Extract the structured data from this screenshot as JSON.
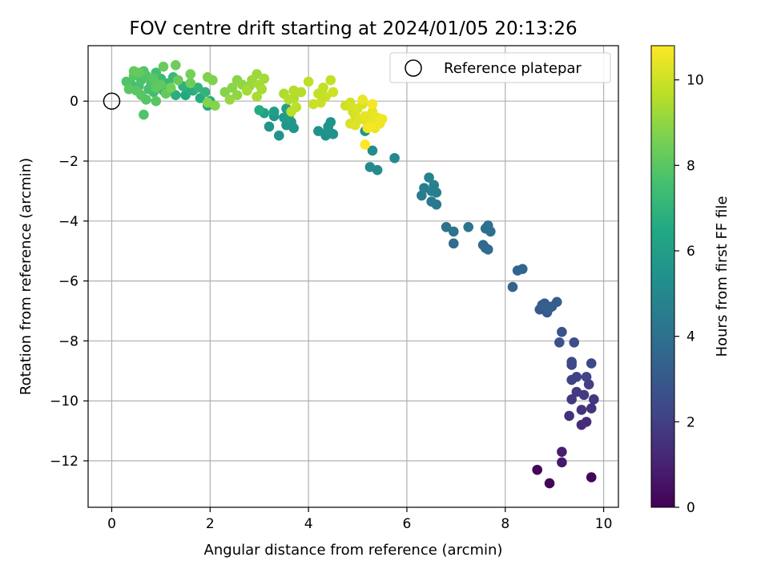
{
  "chart_data": {
    "type": "scatter",
    "title": "FOV centre drift starting at 2024/01/05 20:13:26",
    "xlabel": "Angular distance from reference (arcmin)",
    "ylabel": "Rotation from reference (arcmin)",
    "xlim": [
      -0.48,
      10.3
    ],
    "ylim": [
      -13.55,
      1.85
    ],
    "xticks": [
      0,
      2,
      4,
      6,
      8,
      10
    ],
    "yticks": [
      0,
      -2,
      -4,
      -6,
      -8,
      -10,
      -12
    ],
    "xtick_labels": [
      "0",
      "2",
      "4",
      "6",
      "8",
      "10"
    ],
    "ytick_labels": [
      "0",
      "−2",
      "−4",
      "−6",
      "−8",
      "−10",
      "−12"
    ],
    "grid": true,
    "colormap": "viridis",
    "colorbar": {
      "label": "Hours from first FF file",
      "range": [
        0,
        10.8
      ],
      "ticks": [
        0,
        2,
        4,
        6,
        8,
        10
      ],
      "tick_labels": [
        "0",
        "2",
        "4",
        "6",
        "8",
        "10"
      ]
    },
    "legend": {
      "position": "top-right",
      "entries": [
        {
          "label": "Reference platepar",
          "marker": "open-circle"
        }
      ]
    },
    "reference_point": {
      "x": 0,
      "y": 0
    },
    "points": [
      {
        "x": 8.65,
        "y": -12.3,
        "h": 0.1
      },
      {
        "x": 8.9,
        "y": -12.75,
        "h": 0.1
      },
      {
        "x": 9.75,
        "y": -12.55,
        "h": 0.15
      },
      {
        "x": 9.15,
        "y": -12.05,
        "h": 0.7
      },
      {
        "x": 9.15,
        "y": -11.7,
        "h": 0.9
      },
      {
        "x": 9.55,
        "y": -10.8,
        "h": 1.3
      },
      {
        "x": 9.65,
        "y": -10.7,
        "h": 1.4
      },
      {
        "x": 9.3,
        "y": -10.5,
        "h": 1.5
      },
      {
        "x": 9.75,
        "y": -10.25,
        "h": 1.6
      },
      {
        "x": 9.55,
        "y": -10.3,
        "h": 1.6
      },
      {
        "x": 9.8,
        "y": -9.95,
        "h": 1.7
      },
      {
        "x": 9.35,
        "y": -9.95,
        "h": 1.8
      },
      {
        "x": 9.45,
        "y": -9.7,
        "h": 1.8
      },
      {
        "x": 9.6,
        "y": -9.8,
        "h": 1.9
      },
      {
        "x": 9.7,
        "y": -9.45,
        "h": 2.0
      },
      {
        "x": 9.35,
        "y": -9.3,
        "h": 2.1
      },
      {
        "x": 9.45,
        "y": -9.2,
        "h": 2.1
      },
      {
        "x": 9.65,
        "y": -9.2,
        "h": 2.2
      },
      {
        "x": 9.35,
        "y": -8.8,
        "h": 2.3
      },
      {
        "x": 9.35,
        "y": -8.7,
        "h": 2.4
      },
      {
        "x": 9.75,
        "y": -8.75,
        "h": 2.4
      },
      {
        "x": 9.4,
        "y": -8.05,
        "h": 2.6
      },
      {
        "x": 9.1,
        "y": -8.05,
        "h": 2.7
      },
      {
        "x": 9.15,
        "y": -7.7,
        "h": 2.8
      },
      {
        "x": 8.7,
        "y": -6.95,
        "h": 3.0
      },
      {
        "x": 8.85,
        "y": -7.05,
        "h": 3.0
      },
      {
        "x": 8.8,
        "y": -6.75,
        "h": 3.1
      },
      {
        "x": 8.95,
        "y": -6.85,
        "h": 3.1
      },
      {
        "x": 9.05,
        "y": -6.7,
        "h": 3.2
      },
      {
        "x": 8.75,
        "y": -6.8,
        "h": 3.2
      },
      {
        "x": 8.9,
        "y": -6.9,
        "h": 3.3
      },
      {
        "x": 8.15,
        "y": -6.2,
        "h": 3.4
      },
      {
        "x": 8.25,
        "y": -5.65,
        "h": 3.5
      },
      {
        "x": 8.35,
        "y": -5.6,
        "h": 3.5
      },
      {
        "x": 7.55,
        "y": -4.8,
        "h": 3.7
      },
      {
        "x": 7.6,
        "y": -4.9,
        "h": 3.7
      },
      {
        "x": 7.65,
        "y": -4.95,
        "h": 3.8
      },
      {
        "x": 6.95,
        "y": -4.75,
        "h": 3.8
      },
      {
        "x": 7.6,
        "y": -4.25,
        "h": 3.9
      },
      {
        "x": 7.7,
        "y": -4.35,
        "h": 3.9
      },
      {
        "x": 7.65,
        "y": -4.15,
        "h": 4.0
      },
      {
        "x": 6.8,
        "y": -4.2,
        "h": 4.0
      },
      {
        "x": 6.95,
        "y": -4.35,
        "h": 4.1
      },
      {
        "x": 7.25,
        "y": -4.2,
        "h": 4.1
      },
      {
        "x": 6.6,
        "y": -3.45,
        "h": 4.3
      },
      {
        "x": 6.5,
        "y": -3.35,
        "h": 4.4
      },
      {
        "x": 6.3,
        "y": -3.15,
        "h": 4.5
      },
      {
        "x": 6.35,
        "y": -2.9,
        "h": 4.5
      },
      {
        "x": 6.5,
        "y": -3.0,
        "h": 4.6
      },
      {
        "x": 6.6,
        "y": -3.05,
        "h": 4.6
      },
      {
        "x": 6.55,
        "y": -2.8,
        "h": 4.7
      },
      {
        "x": 6.45,
        "y": -2.55,
        "h": 4.8
      },
      {
        "x": 5.75,
        "y": -1.9,
        "h": 5.0
      },
      {
        "x": 5.25,
        "y": -2.2,
        "h": 5.1
      },
      {
        "x": 5.4,
        "y": -2.3,
        "h": 5.1
      },
      {
        "x": 5.3,
        "y": -1.65,
        "h": 5.2
      },
      {
        "x": 4.35,
        "y": -1.15,
        "h": 5.4
      },
      {
        "x": 4.5,
        "y": -1.1,
        "h": 5.4
      },
      {
        "x": 4.2,
        "y": -1.0,
        "h": 5.4
      },
      {
        "x": 4.4,
        "y": -0.95,
        "h": 5.5
      },
      {
        "x": 4.45,
        "y": -0.7,
        "h": 5.5
      },
      {
        "x": 4.4,
        "y": -0.85,
        "h": 5.5
      },
      {
        "x": 5.15,
        "y": -1.0,
        "h": 5.5
      },
      {
        "x": 3.4,
        "y": -1.15,
        "h": 5.5
      },
      {
        "x": 3.2,
        "y": -0.85,
        "h": 5.6
      },
      {
        "x": 3.3,
        "y": -0.5,
        "h": 5.6
      },
      {
        "x": 3.7,
        "y": -0.9,
        "h": 5.6
      },
      {
        "x": 3.55,
        "y": -0.8,
        "h": 5.7
      },
      {
        "x": 3.65,
        "y": -0.7,
        "h": 5.7
      },
      {
        "x": 3.5,
        "y": -0.55,
        "h": 5.8
      },
      {
        "x": 3.6,
        "y": -0.5,
        "h": 5.9
      },
      {
        "x": 3.55,
        "y": -0.25,
        "h": 6.1
      },
      {
        "x": 3.1,
        "y": -0.4,
        "h": 6.2
      },
      {
        "x": 3.3,
        "y": -0.35,
        "h": 6.0
      },
      {
        "x": 3.0,
        "y": -0.3,
        "h": 6.6
      },
      {
        "x": 1.95,
        "y": -0.15,
        "h": 6.4
      },
      {
        "x": 2.0,
        "y": 0.0,
        "h": 6.6
      },
      {
        "x": 1.8,
        "y": 0.1,
        "h": 6.6
      },
      {
        "x": 1.5,
        "y": 0.2,
        "h": 6.5
      },
      {
        "x": 1.55,
        "y": 0.4,
        "h": 6.6
      },
      {
        "x": 1.65,
        "y": 0.35,
        "h": 6.7
      },
      {
        "x": 1.3,
        "y": 0.2,
        "h": 6.8
      },
      {
        "x": 1.45,
        "y": 0.5,
        "h": 6.9
      },
      {
        "x": 1.75,
        "y": 0.45,
        "h": 7.0
      },
      {
        "x": 1.9,
        "y": 0.3,
        "h": 7.0
      },
      {
        "x": 1.2,
        "y": 0.4,
        "h": 7.0
      },
      {
        "x": 1.05,
        "y": 0.35,
        "h": 7.1
      },
      {
        "x": 0.95,
        "y": 0.55,
        "h": 7.1
      },
      {
        "x": 1.15,
        "y": 0.6,
        "h": 7.2
      },
      {
        "x": 1.0,
        "y": 0.75,
        "h": 7.3
      },
      {
        "x": 1.25,
        "y": 0.8,
        "h": 7.3
      },
      {
        "x": 0.85,
        "y": 0.3,
        "h": 7.4
      },
      {
        "x": 0.9,
        "y": 0.95,
        "h": 7.5
      },
      {
        "x": 0.75,
        "y": 0.4,
        "h": 7.6
      },
      {
        "x": 0.55,
        "y": 0.5,
        "h": 7.6
      },
      {
        "x": 0.4,
        "y": 0.55,
        "h": 7.6
      },
      {
        "x": 0.6,
        "y": 0.7,
        "h": 7.7
      },
      {
        "x": 0.8,
        "y": 0.6,
        "h": 7.7
      },
      {
        "x": 0.7,
        "y": 0.85,
        "h": 7.8
      },
      {
        "x": 0.3,
        "y": 0.65,
        "h": 7.8
      },
      {
        "x": 0.45,
        "y": 0.85,
        "h": 7.9
      },
      {
        "x": 0.65,
        "y": 1.0,
        "h": 7.9
      },
      {
        "x": 0.85,
        "y": 0.75,
        "h": 8.0
      },
      {
        "x": 0.35,
        "y": 0.4,
        "h": 8.0
      },
      {
        "x": 0.5,
        "y": 0.35,
        "h": 8.0
      },
      {
        "x": 0.6,
        "y": 0.2,
        "h": 8.0
      },
      {
        "x": 0.7,
        "y": 0.05,
        "h": 7.9
      },
      {
        "x": 0.65,
        "y": -0.45,
        "h": 7.8
      },
      {
        "x": 0.9,
        "y": 0.0,
        "h": 8.0
      },
      {
        "x": 0.9,
        "y": 0.45,
        "h": 8.1
      },
      {
        "x": 1.0,
        "y": 0.55,
        "h": 8.1
      },
      {
        "x": 1.1,
        "y": 0.25,
        "h": 8.2
      },
      {
        "x": 0.45,
        "y": 1.0,
        "h": 8.2
      },
      {
        "x": 0.55,
        "y": 0.95,
        "h": 8.2
      },
      {
        "x": 1.05,
        "y": 1.15,
        "h": 8.3
      },
      {
        "x": 1.3,
        "y": 1.2,
        "h": 8.4
      },
      {
        "x": 1.35,
        "y": 0.7,
        "h": 8.3
      },
      {
        "x": 1.6,
        "y": 0.9,
        "h": 8.5
      },
      {
        "x": 1.6,
        "y": 0.6,
        "h": 8.4
      },
      {
        "x": 1.2,
        "y": 0.45,
        "h": 8.5
      },
      {
        "x": 1.95,
        "y": 0.8,
        "h": 8.7
      },
      {
        "x": 2.05,
        "y": 0.7,
        "h": 8.7
      },
      {
        "x": 1.95,
        "y": -0.05,
        "h": 8.8
      },
      {
        "x": 2.1,
        "y": -0.15,
        "h": 8.8
      },
      {
        "x": 2.3,
        "y": 0.3,
        "h": 8.8
      },
      {
        "x": 2.45,
        "y": 0.45,
        "h": 8.9
      },
      {
        "x": 2.55,
        "y": 0.7,
        "h": 8.9
      },
      {
        "x": 2.55,
        "y": 0.2,
        "h": 9.0
      },
      {
        "x": 2.65,
        "y": 0.55,
        "h": 9.0
      },
      {
        "x": 2.4,
        "y": 0.05,
        "h": 9.1
      },
      {
        "x": 2.8,
        "y": 0.5,
        "h": 9.1
      },
      {
        "x": 2.85,
        "y": 0.7,
        "h": 9.2
      },
      {
        "x": 2.95,
        "y": 0.9,
        "h": 9.2
      },
      {
        "x": 2.75,
        "y": 0.35,
        "h": 9.3
      },
      {
        "x": 3.0,
        "y": 0.55,
        "h": 9.3
      },
      {
        "x": 3.1,
        "y": 0.75,
        "h": 9.3
      },
      {
        "x": 3.05,
        "y": 0.4,
        "h": 9.4
      },
      {
        "x": 2.95,
        "y": 0.15,
        "h": 9.4
      },
      {
        "x": 3.5,
        "y": 0.25,
        "h": 9.5
      },
      {
        "x": 3.7,
        "y": 0.1,
        "h": 9.5
      },
      {
        "x": 3.85,
        "y": 0.3,
        "h": 9.6
      },
      {
        "x": 3.7,
        "y": 0.35,
        "h": 9.6
      },
      {
        "x": 3.6,
        "y": 0.05,
        "h": 9.6
      },
      {
        "x": 3.75,
        "y": -0.2,
        "h": 9.7
      },
      {
        "x": 3.65,
        "y": -0.35,
        "h": 9.7
      },
      {
        "x": 4.0,
        "y": 0.65,
        "h": 9.7
      },
      {
        "x": 4.2,
        "y": 0.25,
        "h": 9.8
      },
      {
        "x": 4.3,
        "y": 0.45,
        "h": 9.8
      },
      {
        "x": 4.45,
        "y": 0.7,
        "h": 9.8
      },
      {
        "x": 4.35,
        "y": 0.15,
        "h": 9.9
      },
      {
        "x": 4.1,
        "y": -0.1,
        "h": 9.9
      },
      {
        "x": 4.25,
        "y": -0.05,
        "h": 9.9
      },
      {
        "x": 4.5,
        "y": 0.3,
        "h": 10.0
      },
      {
        "x": 4.75,
        "y": -0.15,
        "h": 10.0
      },
      {
        "x": 4.85,
        "y": -0.05,
        "h": 10.1
      },
      {
        "x": 4.9,
        "y": -0.35,
        "h": 10.1
      },
      {
        "x": 4.95,
        "y": -0.5,
        "h": 10.1
      },
      {
        "x": 5.0,
        "y": -0.25,
        "h": 10.2
      },
      {
        "x": 5.1,
        "y": -0.1,
        "h": 10.2
      },
      {
        "x": 4.85,
        "y": -0.75,
        "h": 10.2
      },
      {
        "x": 4.95,
        "y": -0.8,
        "h": 10.3
      },
      {
        "x": 5.05,
        "y": -0.6,
        "h": 10.3
      },
      {
        "x": 5.2,
        "y": -0.75,
        "h": 10.3
      },
      {
        "x": 5.15,
        "y": -0.5,
        "h": 10.4
      },
      {
        "x": 5.3,
        "y": -0.35,
        "h": 10.4
      },
      {
        "x": 5.25,
        "y": -0.65,
        "h": 10.4
      },
      {
        "x": 5.35,
        "y": -0.9,
        "h": 10.5
      },
      {
        "x": 5.4,
        "y": -0.55,
        "h": 10.5
      },
      {
        "x": 5.45,
        "y": -0.75,
        "h": 10.6
      },
      {
        "x": 5.5,
        "y": -0.6,
        "h": 10.6
      },
      {
        "x": 5.2,
        "y": -0.9,
        "h": 10.6
      },
      {
        "x": 5.1,
        "y": 0.05,
        "h": 10.5
      },
      {
        "x": 5.3,
        "y": -0.1,
        "h": 10.7
      },
      {
        "x": 5.15,
        "y": -1.45,
        "h": 10.8
      },
      {
        "x": 5.25,
        "y": -0.85,
        "h": 10.7
      }
    ]
  }
}
